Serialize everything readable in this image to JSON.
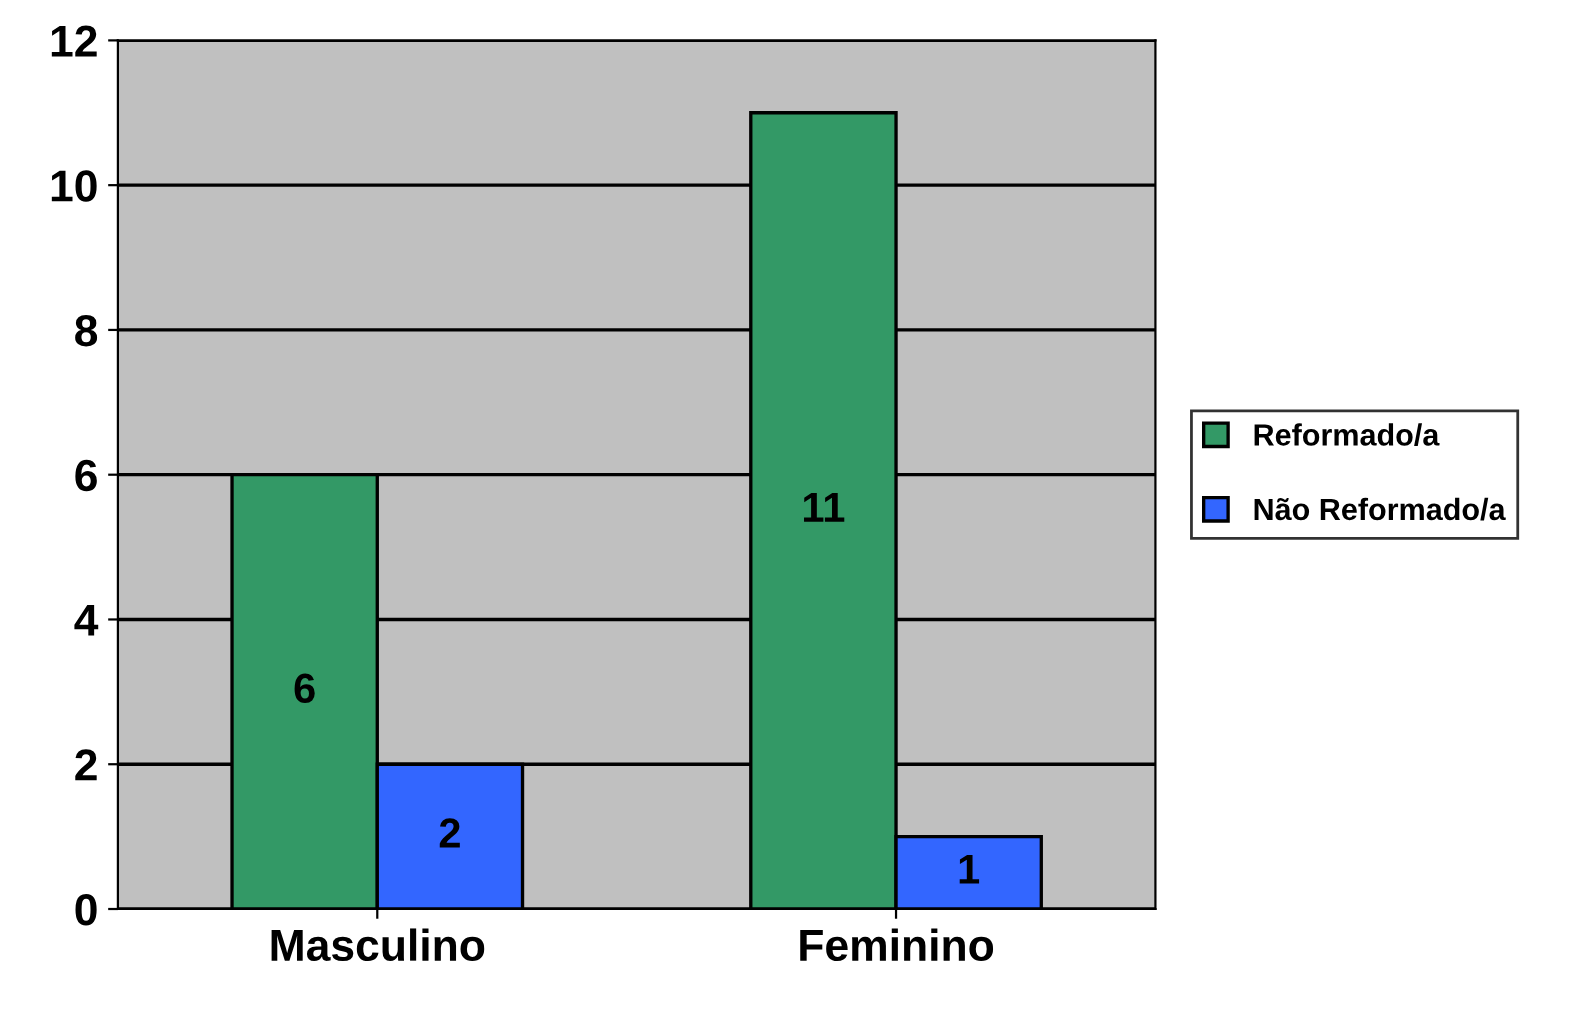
{
  "chart_data": {
    "type": "bar",
    "categories": [
      "Masculino",
      "Feminino"
    ],
    "series": [
      {
        "name": "Reformado/a",
        "color": "#339966",
        "values": [
          6,
          11
        ]
      },
      {
        "name": "Não Reformado/a",
        "color": "#3366ff",
        "values": [
          2,
          1
        ]
      }
    ],
    "ylim": [
      0,
      12
    ],
    "yticks": [
      0,
      2,
      4,
      6,
      8,
      10,
      12
    ],
    "grid": "y",
    "legend": "right",
    "data_labels": true
  }
}
